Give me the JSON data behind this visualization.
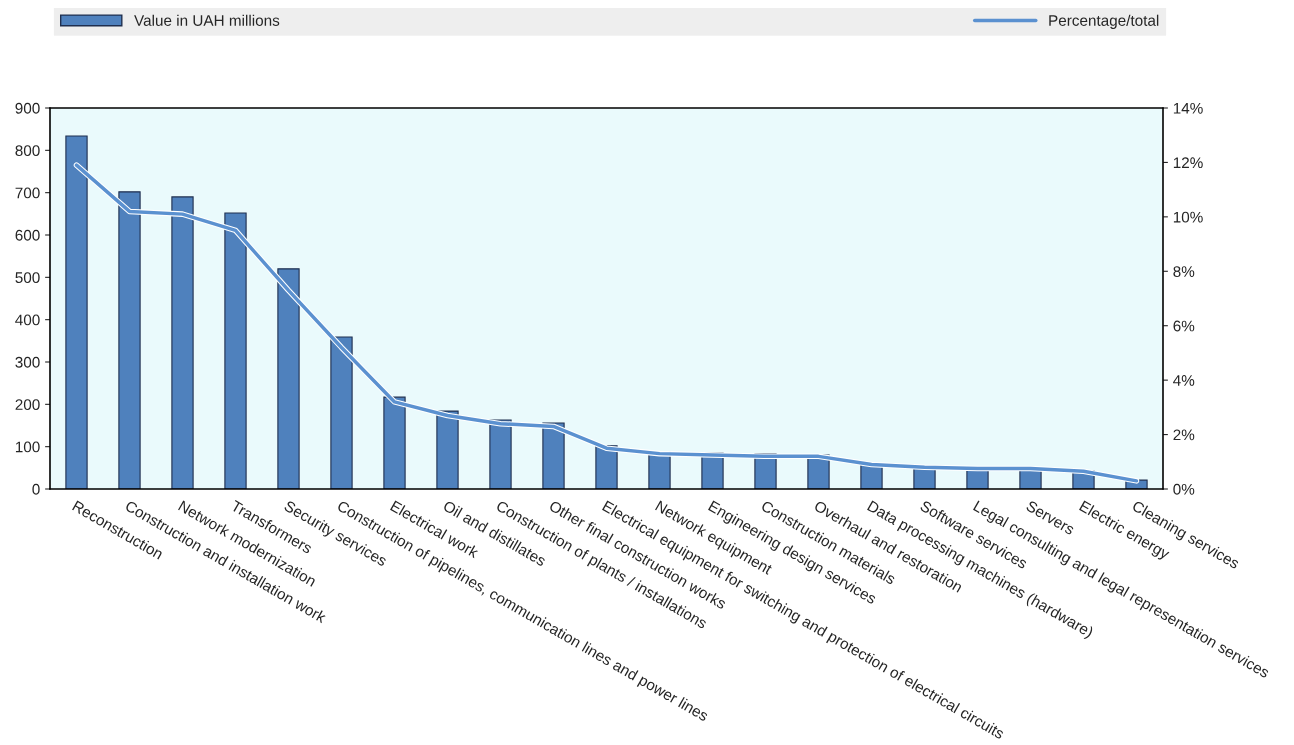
{
  "chart_data": {
    "type": "bar",
    "categories": [
      "Reconstruction",
      "Construction and installation work",
      "Network modernization",
      "Transformers",
      "Security services",
      "Construction of pipelines, communication lines and power lines",
      "Electrical work",
      "Oil and distillates",
      "Construction of plants / installations",
      "Other final construction works",
      "Electrical equipment for switching and protection of electrical circuits",
      "Network equipment",
      "Engineering design services",
      "Construction materials",
      "Overhaul and restoration",
      "Data processing machines (hardware)",
      "Software services",
      "Legal consulting and legal representation services",
      "Servers",
      "Electric energy",
      "Cleaning services"
    ],
    "series": [
      {
        "name": "Value in UAH millions",
        "color": "#4f81bd",
        "values": [
          834,
          702,
          690,
          652,
          520,
          359,
          217,
          184,
          163,
          156,
          102,
          87,
          85,
          83,
          80,
          59,
          52,
          50,
          49,
          43,
          21
        ]
      },
      {
        "name": "Percentage/total",
        "type": "line",
        "axis": "y2",
        "color": "#5b91d0",
        "values": [
          11.9,
          10.2,
          10.1,
          9.5,
          7.3,
          5.2,
          3.2,
          2.7,
          2.4,
          2.3,
          1.5,
          1.3,
          1.25,
          1.2,
          1.2,
          0.9,
          0.8,
          0.75,
          0.75,
          0.65,
          0.3
        ]
      }
    ],
    "ylim": [
      0,
      900
    ],
    "yticks": [
      0,
      100,
      200,
      300,
      400,
      500,
      600,
      700,
      800,
      900
    ],
    "y2lim": [
      0,
      14
    ],
    "y2ticks": [
      {
        "value": 0,
        "label": "0%"
      },
      {
        "value": 2,
        "label": "2%"
      },
      {
        "value": 4,
        "label": "4%"
      },
      {
        "value": 6,
        "label": "6%"
      },
      {
        "value": 8,
        "label": "8%"
      },
      {
        "value": 10,
        "label": "10%"
      },
      {
        "value": 12,
        "label": "12%"
      },
      {
        "value": 14,
        "label": "14%"
      }
    ],
    "grid": false,
    "legend": "top"
  }
}
